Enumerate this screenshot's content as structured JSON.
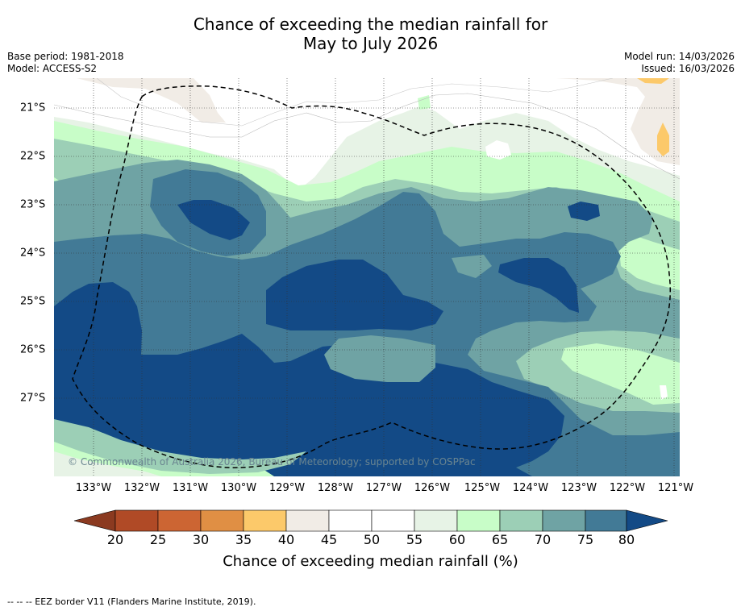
{
  "title": {
    "line1": "Chance of exceeding the median rainfall for",
    "line2": "May to July 2026"
  },
  "meta": {
    "base_period": "Base period: 1981-2018",
    "model": "Model: ACCESS-S2",
    "model_run": "Model run: 14/03/2026",
    "issued": "Issued: 16/03/2026"
  },
  "map": {
    "copyright": "© Commonwealth of Australia 2026, Bureau of Meteorology; supported by COSPPac",
    "longitude_labels": [
      "133°W",
      "132°W",
      "131°W",
      "130°W",
      "129°W",
      "128°W",
      "127°W",
      "126°W",
      "125°W",
      "124°W",
      "123°W",
      "122°W",
      "121°W"
    ],
    "latitude_labels": [
      "21°S",
      "22°S",
      "23°S",
      "24°S",
      "25°S",
      "26°S",
      "27°S"
    ],
    "boundary": "EEZ border (dashed)"
  },
  "colorbar": {
    "ticks": [
      "20",
      "25",
      "30",
      "35",
      "40",
      "45",
      "50",
      "55",
      "60",
      "65",
      "70",
      "75",
      "80"
    ],
    "label": "Chance of exceeding median rainfall (%)",
    "colors": [
      "#8b3a20",
      "#b04a26",
      "#cc6533",
      "#e08f44",
      "#fcc96a",
      "#f1ece6",
      "#ffffff",
      "#ffffff",
      "#e7f3e6",
      "#c8fdc8",
      "#9ccfb6",
      "#6fa3a4",
      "#427a96",
      "#134a86"
    ]
  },
  "footer": {
    "note": "--  --  -- EEZ border V11 (Flanders Marine Institute, 2019)."
  }
}
